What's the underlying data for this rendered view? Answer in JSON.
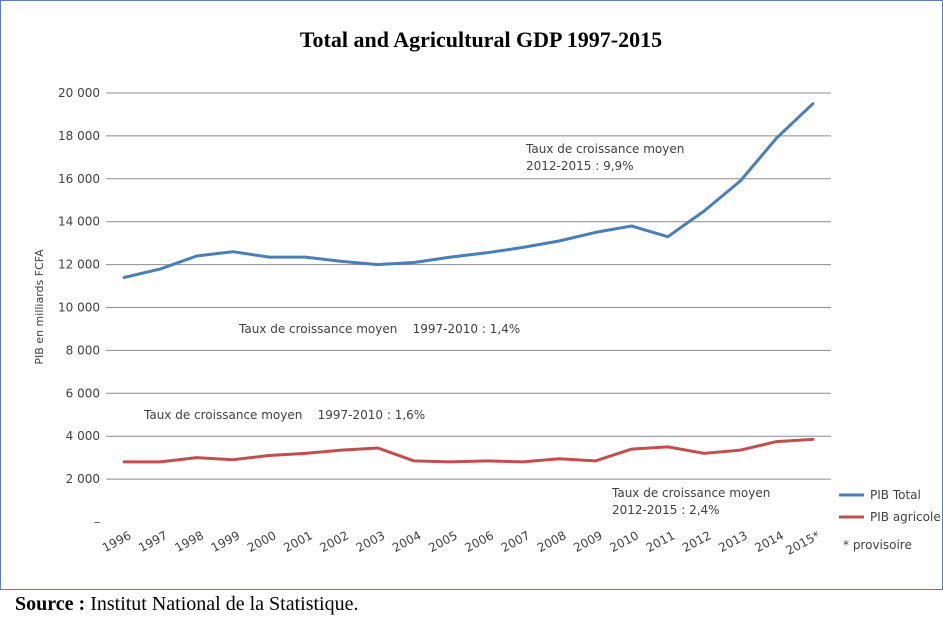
{
  "source": {
    "label": "Source :",
    "text": " Institut National de la Statistique."
  },
  "chart_data": {
    "type": "line",
    "title": "Total and Agricultural GDP 1997-2015",
    "ylabel": "PIB en milliards FCFA",
    "xlabel": "",
    "ylim": [
      0,
      20000
    ],
    "yticks": [
      "–",
      "2 000",
      "4 000",
      "6 000",
      "8 000",
      "10 000",
      "12 000",
      "14 000",
      "16 000",
      "18 000",
      "20 000"
    ],
    "ytick_values": [
      0,
      2000,
      4000,
      6000,
      8000,
      10000,
      12000,
      14000,
      16000,
      18000,
      20000
    ],
    "categories": [
      "1996",
      "1997",
      "1998",
      "1999",
      "2000",
      "2001",
      "2002",
      "2003",
      "2004",
      "2005",
      "2006",
      "2007",
      "2008",
      "2009",
      "2010",
      "2011",
      "2012",
      "2013",
      "2014",
      "2015*"
    ],
    "grid": true,
    "legend_position": "bottom-right",
    "series": [
      {
        "name": "PIB Total",
        "color": "#4a7ebb",
        "values": [
          11400,
          11800,
          12400,
          12600,
          12350,
          12350,
          12150,
          12000,
          12100,
          12350,
          12550,
          12800,
          13100,
          13500,
          13800,
          13300,
          14500,
          15900,
          17900,
          19500
        ]
      },
      {
        "name": "PIB agricole",
        "color": "#c0504d",
        "values": [
          2800,
          2800,
          3000,
          2900,
          3100,
          3200,
          3350,
          3450,
          2850,
          2800,
          2850,
          2800,
          2950,
          2850,
          3400,
          3500,
          3200,
          3350,
          3750,
          3850
        ]
      }
    ],
    "legend_note": "* provisoire",
    "annotations": [
      {
        "lines": [
          "Taux de croissance moyen",
          "2012-2015 : 9,9%"
        ]
      },
      {
        "lines": [
          "Taux de croissance moyen    1997-2010 : 1,4%"
        ]
      },
      {
        "lines": [
          "Taux de croissance moyen    1997-2010 : 1,6%"
        ]
      },
      {
        "lines": [
          "Taux de croissance moyen",
          "2012-2015 : 2,4%"
        ]
      }
    ]
  }
}
